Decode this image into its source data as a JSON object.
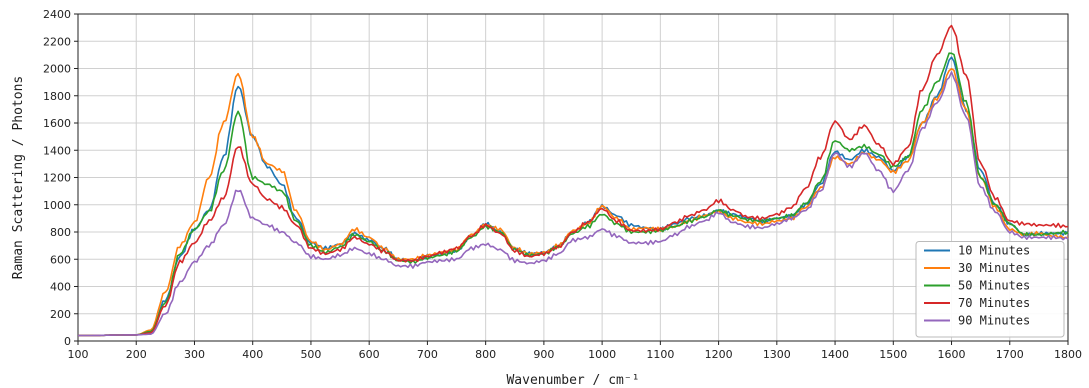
{
  "chart_data": {
    "type": "line",
    "xlabel": "Wavenumber / cm⁻¹",
    "ylabel": "Raman Scattering / Photons",
    "xlim": [
      100,
      1800
    ],
    "ylim": [
      0,
      2400
    ],
    "xticks": [
      100,
      200,
      300,
      400,
      500,
      600,
      700,
      800,
      900,
      1000,
      1100,
      1200,
      1300,
      1400,
      1500,
      1600,
      1700,
      1800
    ],
    "yticks": [
      0,
      200,
      400,
      600,
      800,
      1000,
      1200,
      1400,
      1600,
      1800,
      2000,
      2200,
      2400
    ],
    "grid": true,
    "legend_position": "bottom-right",
    "x": [
      100,
      200,
      225,
      250,
      275,
      300,
      325,
      350,
      375,
      400,
      425,
      450,
      475,
      500,
      525,
      550,
      575,
      600,
      625,
      650,
      675,
      700,
      725,
      750,
      775,
      800,
      825,
      850,
      875,
      900,
      925,
      950,
      975,
      1000,
      1025,
      1050,
      1075,
      1100,
      1125,
      1150,
      1175,
      1200,
      1225,
      1250,
      1275,
      1300,
      1325,
      1350,
      1375,
      1400,
      1425,
      1450,
      1475,
      1500,
      1525,
      1550,
      1575,
      1600,
      1625,
      1650,
      1675,
      1700,
      1725,
      1750,
      1775,
      1800
    ],
    "series": [
      {
        "name": "10 Minutes",
        "color": "#1f77b4",
        "values": [
          40,
          45,
          70,
          300,
          620,
          820,
          960,
          1350,
          1870,
          1500,
          1280,
          1150,
          900,
          720,
          680,
          710,
          790,
          740,
          680,
          600,
          590,
          620,
          640,
          660,
          770,
          860,
          800,
          680,
          640,
          650,
          700,
          800,
          870,
          990,
          920,
          850,
          830,
          820,
          860,
          900,
          920,
          960,
          930,
          900,
          880,
          900,
          920,
          1000,
          1150,
          1390,
          1330,
          1400,
          1350,
          1250,
          1350,
          1600,
          1800,
          2080,
          1700,
          1250,
          1000,
          860,
          780,
          790,
          790,
          790
        ]
      },
      {
        "name": "30 Minutes",
        "color": "#ff7f0e",
        "values": [
          40,
          45,
          80,
          360,
          700,
          870,
          1200,
          1600,
          1960,
          1500,
          1300,
          1250,
          950,
          730,
          670,
          710,
          820,
          760,
          680,
          600,
          600,
          630,
          650,
          670,
          780,
          850,
          820,
          680,
          640,
          650,
          700,
          810,
          860,
          990,
          900,
          820,
          830,
          820,
          840,
          880,
          920,
          950,
          900,
          870,
          860,
          880,
          900,
          980,
          1120,
          1350,
          1300,
          1380,
          1330,
          1240,
          1320,
          1600,
          1780,
          2000,
          1700,
          1200,
          980,
          820,
          780,
          790,
          770,
          760
        ]
      },
      {
        "name": "50 Minutes",
        "color": "#2ca02c",
        "values": [
          40,
          45,
          70,
          280,
          640,
          820,
          950,
          1250,
          1680,
          1200,
          1150,
          1100,
          880,
          700,
          650,
          690,
          780,
          730,
          660,
          590,
          580,
          610,
          630,
          660,
          760,
          840,
          800,
          670,
          630,
          640,
          690,
          790,
          840,
          930,
          860,
          800,
          800,
          810,
          840,
          880,
          910,
          960,
          920,
          890,
          880,
          900,
          920,
          1010,
          1170,
          1470,
          1400,
          1430,
          1370,
          1280,
          1350,
          1700,
          1900,
          2120,
          1750,
          1200,
          1000,
          860,
          780,
          780,
          790,
          800
        ]
      },
      {
        "name": "70 Minutes",
        "color": "#d62728",
        "values": [
          40,
          45,
          60,
          260,
          580,
          720,
          880,
          1050,
          1430,
          1150,
          1040,
          980,
          850,
          680,
          640,
          670,
          760,
          710,
          660,
          590,
          590,
          620,
          650,
          680,
          770,
          850,
          790,
          660,
          620,
          640,
          690,
          800,
          870,
          970,
          880,
          810,
          810,
          820,
          870,
          920,
          960,
          1030,
          960,
          910,
          900,
          930,
          980,
          1120,
          1350,
          1610,
          1480,
          1580,
          1440,
          1300,
          1420,
          1850,
          2100,
          2310,
          1950,
          1300,
          1050,
          880,
          860,
          850,
          850,
          840
        ]
      },
      {
        "name": "90 Minutes",
        "color": "#9467bd",
        "values": [
          40,
          45,
          50,
          200,
          430,
          580,
          700,
          850,
          1110,
          900,
          850,
          800,
          720,
          620,
          600,
          630,
          680,
          640,
          600,
          550,
          550,
          580,
          590,
          600,
          680,
          710,
          670,
          590,
          570,
          590,
          640,
          740,
          760,
          820,
          770,
          720,
          720,
          730,
          780,
          840,
          880,
          940,
          870,
          840,
          830,
          860,
          900,
          960,
          1100,
          1380,
          1280,
          1380,
          1250,
          1100,
          1250,
          1560,
          1750,
          1960,
          1650,
          1130,
          950,
          800,
          760,
          760,
          760,
          750
        ]
      }
    ]
  }
}
